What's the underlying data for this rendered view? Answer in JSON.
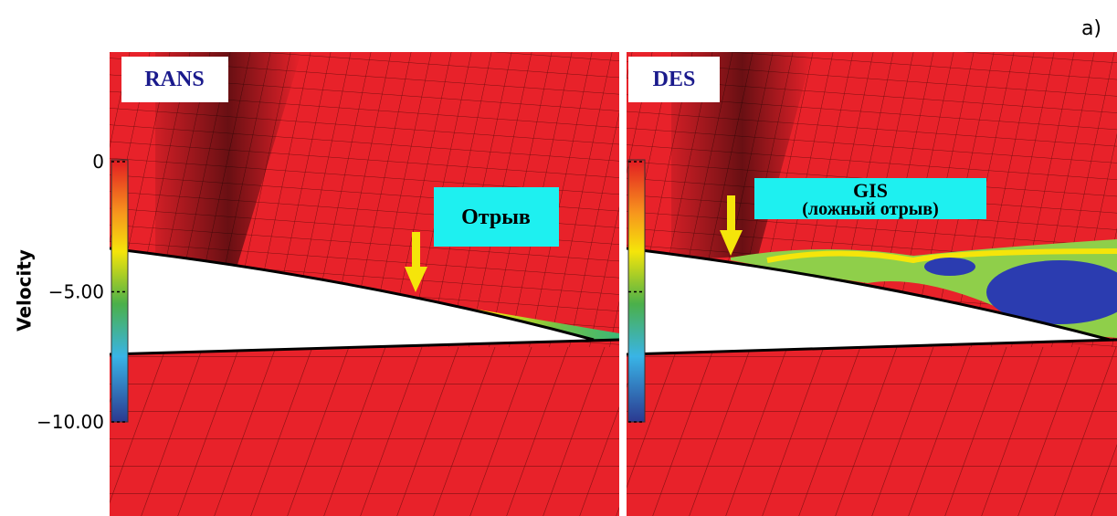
{
  "figure_label": "a)",
  "panels": [
    {
      "title": "RANS",
      "annotation": [
        "Отрыв"
      ]
    },
    {
      "title": "DES",
      "annotation": [
        "GIS",
        "(ложный отрыв)"
      ]
    }
  ],
  "colorbar": {
    "label": "Velocity",
    "ticks": [
      {
        "value": 0,
        "label": "0"
      },
      {
        "value": -5,
        "label": "−5.00"
      },
      {
        "value": -10,
        "label": "−10.00"
      }
    ]
  }
}
